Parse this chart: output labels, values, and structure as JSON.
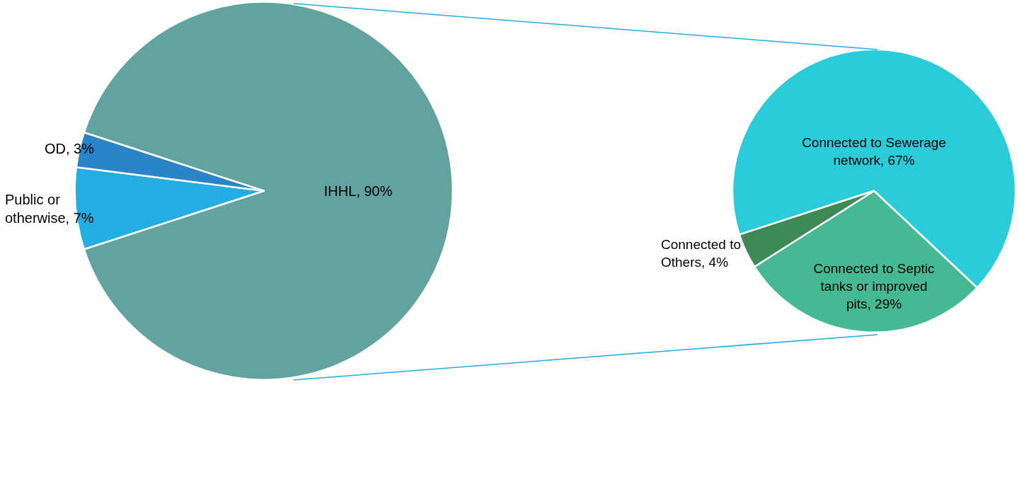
{
  "chart_data": [
    {
      "type": "pie",
      "categories": [
        "IHHL",
        "Public or otherwise",
        "OD"
      ],
      "values": [
        90,
        7,
        3
      ],
      "colors": [
        "#62a39f",
        "#22aee3",
        "#2a84c8"
      ],
      "value_labels": [
        "90%",
        "7%",
        "3%"
      ]
    },
    {
      "type": "pie",
      "categories": [
        "Connected to Sewerage network",
        "Connected to Septic tanks or improved pits",
        "Connected to Others"
      ],
      "values": [
        67,
        29,
        4
      ],
      "colors": [
        "#29ccd8",
        "#44b993",
        "#3d8a55"
      ],
      "value_labels": [
        "67%",
        "29%",
        "4%"
      ]
    }
  ]
}
